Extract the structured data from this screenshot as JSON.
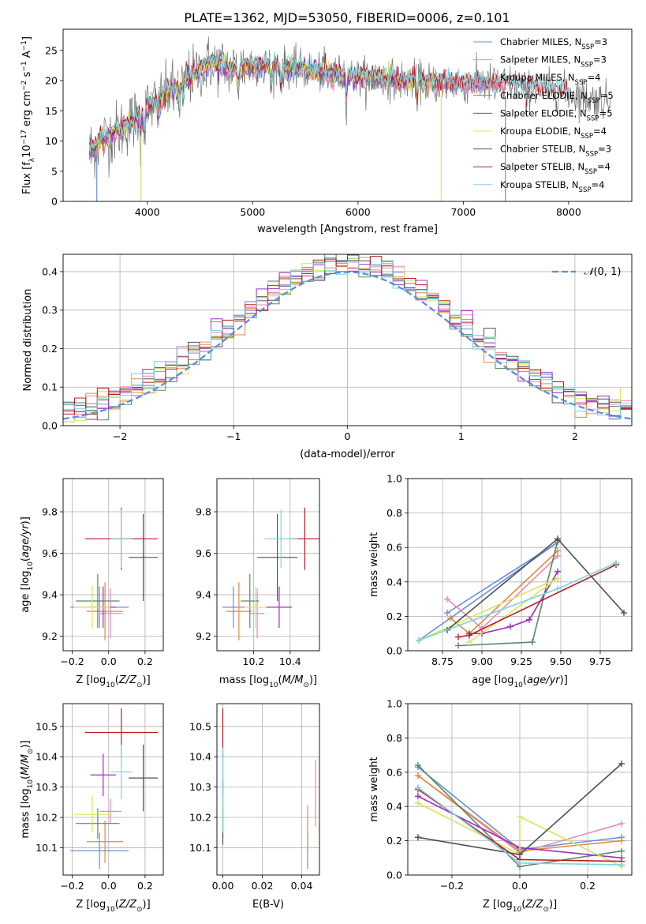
{
  "figure": {
    "title": "PLATE=1362, MJD=53050, FIBERID=0006, z=0.101"
  },
  "colors": [
    "#6a8fd8",
    "#e889b1",
    "#e4883e",
    "#5a8a60",
    "#9c2fc4",
    "#d4e85a",
    "#505050",
    "#b81e24",
    "#7ad4e0"
  ],
  "chart_data": [
    {
      "id": "spectrum",
      "type": "line",
      "xlabel": "wavelength [Angstrom, rest frame]",
      "ylabel": "Flux [fλ10⁻¹⁷ erg cm⁻² s⁻¹ A⁻¹]",
      "xlim": [
        3200,
        8600
      ],
      "ylim": [
        0,
        28.5
      ],
      "xticks": [
        4000,
        5000,
        6000,
        7000,
        8000
      ],
      "yticks": [
        0,
        5,
        10,
        15,
        20,
        25
      ],
      "grid": false,
      "legend_position": "top-right",
      "anchor_x": [
        3450,
        3600,
        3800,
        4000,
        4200,
        4400,
        4600,
        4800,
        5000,
        5200,
        5400,
        5600,
        5800,
        6000,
        6200,
        6400,
        6600,
        6800,
        7000,
        7200,
        7400,
        7600,
        7800,
        8000,
        8200,
        8400
      ],
      "anchor_y": [
        8.5,
        10.5,
        12.5,
        15.5,
        18.0,
        20.5,
        23.0,
        22.0,
        22.5,
        22.5,
        22.0,
        21.5,
        21.0,
        20.5,
        20.5,
        20.0,
        20.0,
        19.5,
        19.5,
        19.5,
        19.5,
        19.0,
        18.5,
        18.0,
        17.0,
        16.5
      ],
      "series": [
        {
          "name": "Chabrier MILES, N_SSP=3",
          "end": 7400
        },
        {
          "name": "Salpeter MILES, N_SSP=3",
          "end": 7400
        },
        {
          "name": "Kroupa MILES, N_SSP=4",
          "end": 7400
        },
        {
          "name": "Chabrier ELODIE, N_SSP=5",
          "end": 6750
        },
        {
          "name": "Salpeter ELODIE, N_SSP=5",
          "end": 6750
        },
        {
          "name": "Kroupa ELODIE, N_SSP=4",
          "end": 6750
        },
        {
          "name": "Chabrier STELIB, N_SSP=3",
          "end": 8000
        },
        {
          "name": "Salpeter STELIB, N_SSP=4",
          "end": 8000
        },
        {
          "name": "Kroupa STELIB, N_SSP=4",
          "end": 8000
        }
      ],
      "legend": [
        {
          "pre": "Chabrier MILES, N",
          "sub": "SSP",
          "post": "=3"
        },
        {
          "pre": "Salpeter MILES, N",
          "sub": "SSP",
          "post": "=3"
        },
        {
          "pre": "Kroupa MILES, N",
          "sub": "SSP",
          "post": "=4"
        },
        {
          "pre": "Chabrier ELODIE, N",
          "sub": "SSP",
          "post": "=5"
        },
        {
          "pre": "Salpeter ELODIE, N",
          "sub": "SSP",
          "post": "=5"
        },
        {
          "pre": "Kroupa ELODIE, N",
          "sub": "SSP",
          "post": "=4"
        },
        {
          "pre": "Chabrier STELIB, N",
          "sub": "SSP",
          "post": "=3"
        },
        {
          "pre": "Salpeter STELIB, N",
          "sub": "SSP",
          "post": "=4"
        },
        {
          "pre": "Kroupa STELIB, N",
          "sub": "SSP",
          "post": "=4"
        }
      ]
    },
    {
      "id": "residuals",
      "type": "histogram",
      "xlabel": "(data-model)/error",
      "ylabel": "Normed distribution",
      "xlim": [
        -2.5,
        2.5
      ],
      "ylim": [
        0,
        0.445
      ],
      "xticks": [
        -2,
        -1,
        0,
        1,
        2
      ],
      "yticks": [
        0.0,
        0.1,
        0.2,
        0.3,
        0.4
      ],
      "grid": true,
      "legend_position": "top-right",
      "bin_width": 0.1,
      "reference_curve": {
        "name": "N(0,1)",
        "mean": 0,
        "sigma": 1
      }
    },
    {
      "id": "age-Z",
      "type": "errorbar",
      "xlabel": "Z [log10(Z/Z⊙)]",
      "ylabel": "age [log10(age/yr)]",
      "xlim": [
        -0.25,
        0.3
      ],
      "ylim": [
        9.13,
        9.96
      ],
      "xticks": [
        -0.2,
        0.0,
        0.2
      ],
      "yticks": [
        9.2,
        9.4,
        9.6,
        9.8
      ],
      "grid": true,
      "points": [
        {
          "x": -0.05,
          "xerr": 0.16,
          "y": 9.34,
          "yerr": 0.1
        },
        {
          "x": 0.01,
          "xerr": 0.06,
          "y": 9.31,
          "yerr": 0.12
        },
        {
          "x": -0.02,
          "xerr": 0.1,
          "y": 9.32,
          "yerr": 0.14
        },
        {
          "x": -0.06,
          "xerr": 0.12,
          "y": 9.37,
          "yerr": 0.13
        },
        {
          "x": -0.03,
          "xerr": 0.07,
          "y": 9.34,
          "yerr": 0.1
        },
        {
          "x": -0.09,
          "xerr": 0.1,
          "y": 9.34,
          "yerr": 0.1
        },
        {
          "x": 0.19,
          "xerr": 0.08,
          "y": 9.58,
          "yerr": 0.21
        },
        {
          "x": 0.07,
          "xerr": 0.2,
          "y": 9.67,
          "yerr": 0.15
        },
        {
          "x": 0.07,
          "xerr": 0.06,
          "y": 9.67,
          "yerr": 0.14
        }
      ]
    },
    {
      "id": "age-mass",
      "type": "errorbar",
      "xlabel": "mass [log10(M/M⊙)]",
      "ylabel": "",
      "xlim": [
        10.0,
        10.56
      ],
      "ylim": [
        9.13,
        9.96
      ],
      "xticks": [
        10.2,
        10.4
      ],
      "yticks": [
        9.2,
        9.4,
        9.6,
        9.8
      ],
      "grid": true,
      "points": [
        {
          "x": 10.09,
          "xerr": 0.06,
          "y": 9.34,
          "yerr": 0.1
        },
        {
          "x": 10.22,
          "xerr": 0.04,
          "y": 9.31,
          "yerr": 0.12
        },
        {
          "x": 10.12,
          "xerr": 0.07,
          "y": 9.32,
          "yerr": 0.14
        },
        {
          "x": 10.18,
          "xerr": 0.05,
          "y": 9.37,
          "yerr": 0.13
        },
        {
          "x": 10.34,
          "xerr": 0.07,
          "y": 9.34,
          "yerr": 0.1
        },
        {
          "x": 10.21,
          "xerr": 0.06,
          "y": 9.34,
          "yerr": 0.1
        },
        {
          "x": 10.33,
          "xerr": 0.11,
          "y": 9.58,
          "yerr": 0.21
        },
        {
          "x": 10.48,
          "xerr": 0.08,
          "y": 9.67,
          "yerr": 0.15
        },
        {
          "x": 10.35,
          "xerr": 0.09,
          "y": 9.67,
          "yerr": 0.14
        }
      ]
    },
    {
      "id": "weight-age",
      "type": "line",
      "xlabel": "age [log10(age/yr)]",
      "ylabel": "mass weight",
      "xlim": [
        8.53,
        9.95
      ],
      "ylim": [
        0,
        1
      ],
      "xticks": [
        8.75,
        9.0,
        9.25,
        9.5,
        9.75
      ],
      "yticks": [
        0.0,
        0.2,
        0.4,
        0.6,
        0.8,
        1.0
      ],
      "grid": true,
      "series": [
        {
          "x": [
            8.78,
            9.48,
            8.6
          ],
          "y": [
            0.22,
            0.63,
            0.06
          ]
        },
        {
          "x": [
            8.78,
            9.0,
            9.48
          ],
          "y": [
            0.3,
            0.13,
            0.55
          ]
        },
        {
          "x": [
            8.8,
            8.92,
            9.48
          ],
          "y": [
            0.19,
            0.1,
            0.58
          ]
        },
        {
          "x": [
            8.85,
            9.32,
            9.48
          ],
          "y": [
            0.03,
            0.05,
            0.64
          ]
        },
        {
          "x": [
            8.92,
            9.0,
            9.18,
            9.3,
            9.48
          ],
          "y": [
            0.1,
            0.1,
            0.14,
            0.18,
            0.46
          ]
        },
        {
          "x": [
            8.6,
            9.48,
            8.92
          ],
          "y": [
            0.06,
            0.42,
            0.05
          ]
        },
        {
          "x": [
            8.78,
            9.48,
            9.9
          ],
          "y": [
            0.12,
            0.65,
            0.22
          ]
        },
        {
          "x": [
            8.85,
            8.92,
            9.85
          ],
          "y": [
            0.08,
            0.09,
            0.5
          ]
        },
        {
          "x": [
            8.6,
            9.48,
            9.85
          ],
          "y": [
            0.06,
            0.36,
            0.51
          ]
        }
      ]
    },
    {
      "id": "mass-Z",
      "type": "errorbar",
      "xlabel": "Z [log10(Z/Z⊙)]",
      "ylabel": "mass [log10(M/M⊙)]",
      "xlim": [
        -0.25,
        0.3
      ],
      "ylim": [
        10.01,
        10.575
      ],
      "xticks": [
        -0.2,
        0.0,
        0.2
      ],
      "yticks": [
        10.1,
        10.2,
        10.3,
        10.4,
        10.5
      ],
      "grid": true,
      "points": [
        {
          "x": -0.05,
          "xerr": 0.16,
          "y": 10.09,
          "yerr": 0.06
        },
        {
          "x": 0.01,
          "xerr": 0.06,
          "y": 10.22,
          "yerr": 0.04
        },
        {
          "x": -0.02,
          "xerr": 0.1,
          "y": 10.12,
          "yerr": 0.07
        },
        {
          "x": -0.06,
          "xerr": 0.12,
          "y": 10.18,
          "yerr": 0.05
        },
        {
          "x": -0.03,
          "xerr": 0.07,
          "y": 10.34,
          "yerr": 0.07
        },
        {
          "x": -0.09,
          "xerr": 0.1,
          "y": 10.21,
          "yerr": 0.06
        },
        {
          "x": 0.19,
          "xerr": 0.08,
          "y": 10.33,
          "yerr": 0.11
        },
        {
          "x": 0.07,
          "xerr": 0.2,
          "y": 10.48,
          "yerr": 0.08
        },
        {
          "x": 0.07,
          "xerr": 0.06,
          "y": 10.35,
          "yerr": 0.09
        }
      ]
    },
    {
      "id": "mass-ebv",
      "type": "errorbar",
      "xlabel": "E(B-V)",
      "ylabel": "",
      "xlim": [
        -0.003,
        0.049
      ],
      "ylim": [
        10.01,
        10.575
      ],
      "xticks": [
        0.0,
        0.02,
        0.04
      ],
      "yticks": [
        10.1,
        10.2,
        10.3,
        10.4,
        10.5
      ],
      "grid": true,
      "points": [
        {
          "x": 0.043,
          "xerr": 0,
          "y": 10.09,
          "yerr": 0.06
        },
        {
          "x": 0.047,
          "xerr": 0,
          "y": 10.28,
          "yerr": 0.11
        },
        {
          "x": 0.043,
          "xerr": 0,
          "y": 10.16,
          "yerr": 0.08
        },
        {
          "x": 0.0,
          "xerr": 0,
          "y": 10.18,
          "yerr": 0.05
        },
        {
          "x": 0.0,
          "xerr": 0,
          "y": 10.34,
          "yerr": 0.07
        },
        {
          "x": 0.0,
          "xerr": 0,
          "y": 10.21,
          "yerr": 0.06
        },
        {
          "x": 0.0,
          "xerr": 0,
          "y": 10.22,
          "yerr": 0.11
        },
        {
          "x": 0.0,
          "xerr": 0,
          "y": 10.48,
          "yerr": 0.08
        },
        {
          "x": 0.0,
          "xerr": 0,
          "y": 10.29,
          "yerr": 0.14
        }
      ]
    },
    {
      "id": "weight-Z",
      "type": "line",
      "xlabel": "Z [log10(Z/Z⊙)]",
      "ylabel": "mass weight",
      "xlim": [
        -0.33,
        0.33
      ],
      "ylim": [
        0,
        1
      ],
      "xticks": [
        -0.2,
        0.0,
        0.2
      ],
      "yticks": [
        0.0,
        0.2,
        0.4,
        0.6,
        0.8,
        1.0
      ],
      "grid": true,
      "series": [
        {
          "x": [
            -0.3,
            0.0,
            0.3
          ],
          "y": [
            0.63,
            0.15,
            0.22
          ]
        },
        {
          "x": [
            -0.3,
            0.0,
            0.3
          ],
          "y": [
            0.58,
            0.13,
            0.3
          ]
        },
        {
          "x": [
            -0.3,
            0.0,
            0.3
          ],
          "y": [
            0.58,
            0.14,
            0.2
          ]
        },
        {
          "x": [
            -0.3,
            0.0,
            0.3
          ],
          "y": [
            0.64,
            0.05,
            0.14
          ]
        },
        {
          "x": [
            -0.3,
            0.0,
            0.3
          ],
          "y": [
            0.46,
            0.16,
            0.1
          ]
        },
        {
          "x": [
            -0.3,
            0.0,
            0.0,
            0.3
          ],
          "y": [
            0.42,
            0.12,
            0.34,
            0.05
          ]
        },
        {
          "x": [
            -0.3,
            0.0,
            0.3
          ],
          "y": [
            0.22,
            0.12,
            0.65
          ]
        },
        {
          "x": [
            -0.3,
            0.0,
            0.3
          ],
          "y": [
            0.5,
            0.09,
            0.08
          ]
        },
        {
          "x": [
            -0.3,
            0.0,
            0.3
          ],
          "y": [
            0.51,
            0.07,
            0.06
          ]
        }
      ]
    }
  ]
}
